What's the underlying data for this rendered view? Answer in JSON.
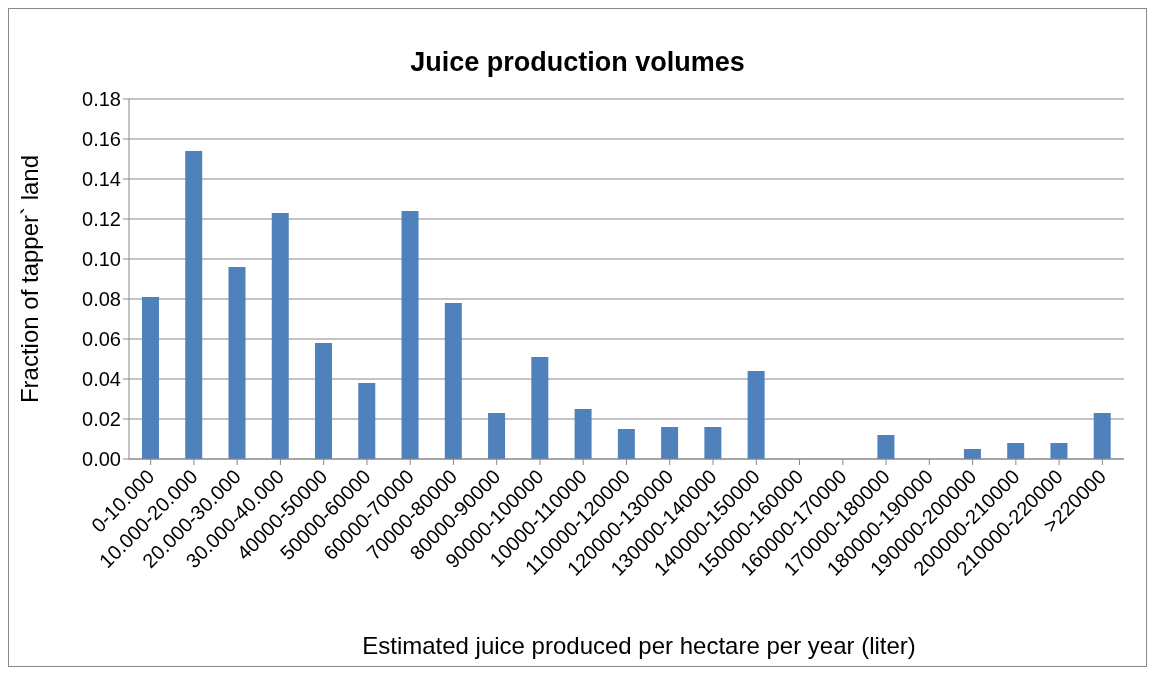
{
  "chart_data": {
    "type": "bar",
    "title": "Juice production volumes",
    "xlabel": "Estimated juice produced per hectare per year (liter)",
    "ylabel": "Fraction of tapper` land",
    "categories": [
      "0-10.000",
      "10.000-20.000",
      "20.000-30.000",
      "30.000-40.000",
      "40000-50000",
      "50000-60000",
      "60000-70000",
      "70000-80000",
      "80000-90000",
      "90000-100000",
      "10000-110000",
      "110000-120000",
      "120000-130000",
      "130000-140000",
      "140000-150000",
      "150000-160000",
      "160000-170000",
      "170000-180000",
      "180000-190000",
      "190000-200000",
      "200000-210000",
      "210000-220000",
      ">220000"
    ],
    "values": [
      0.081,
      0.154,
      0.096,
      0.123,
      0.058,
      0.038,
      0.124,
      0.078,
      0.023,
      0.051,
      0.025,
      0.015,
      0.016,
      0.016,
      0.044,
      0,
      0,
      0.012,
      0,
      0.005,
      0.008,
      0.008,
      0.023
    ],
    "color": "#4f81bd",
    "ylim": [
      0,
      0.18
    ],
    "yticks": [
      {
        "value": 0,
        "label": "0.00"
      },
      {
        "value": 0.02,
        "label": "0.02"
      },
      {
        "value": 0.04,
        "label": "0.04"
      },
      {
        "value": 0.06,
        "label": "0.06"
      },
      {
        "value": 0.08,
        "label": "0.08"
      },
      {
        "value": 0.1,
        "label": "0.10"
      },
      {
        "value": 0.12,
        "label": "0.12"
      },
      {
        "value": 0.14,
        "label": "0.14"
      },
      {
        "value": 0.16,
        "label": "0.16"
      },
      {
        "value": 0.18,
        "label": "0.18"
      }
    ],
    "grid": "y",
    "legend": false
  }
}
